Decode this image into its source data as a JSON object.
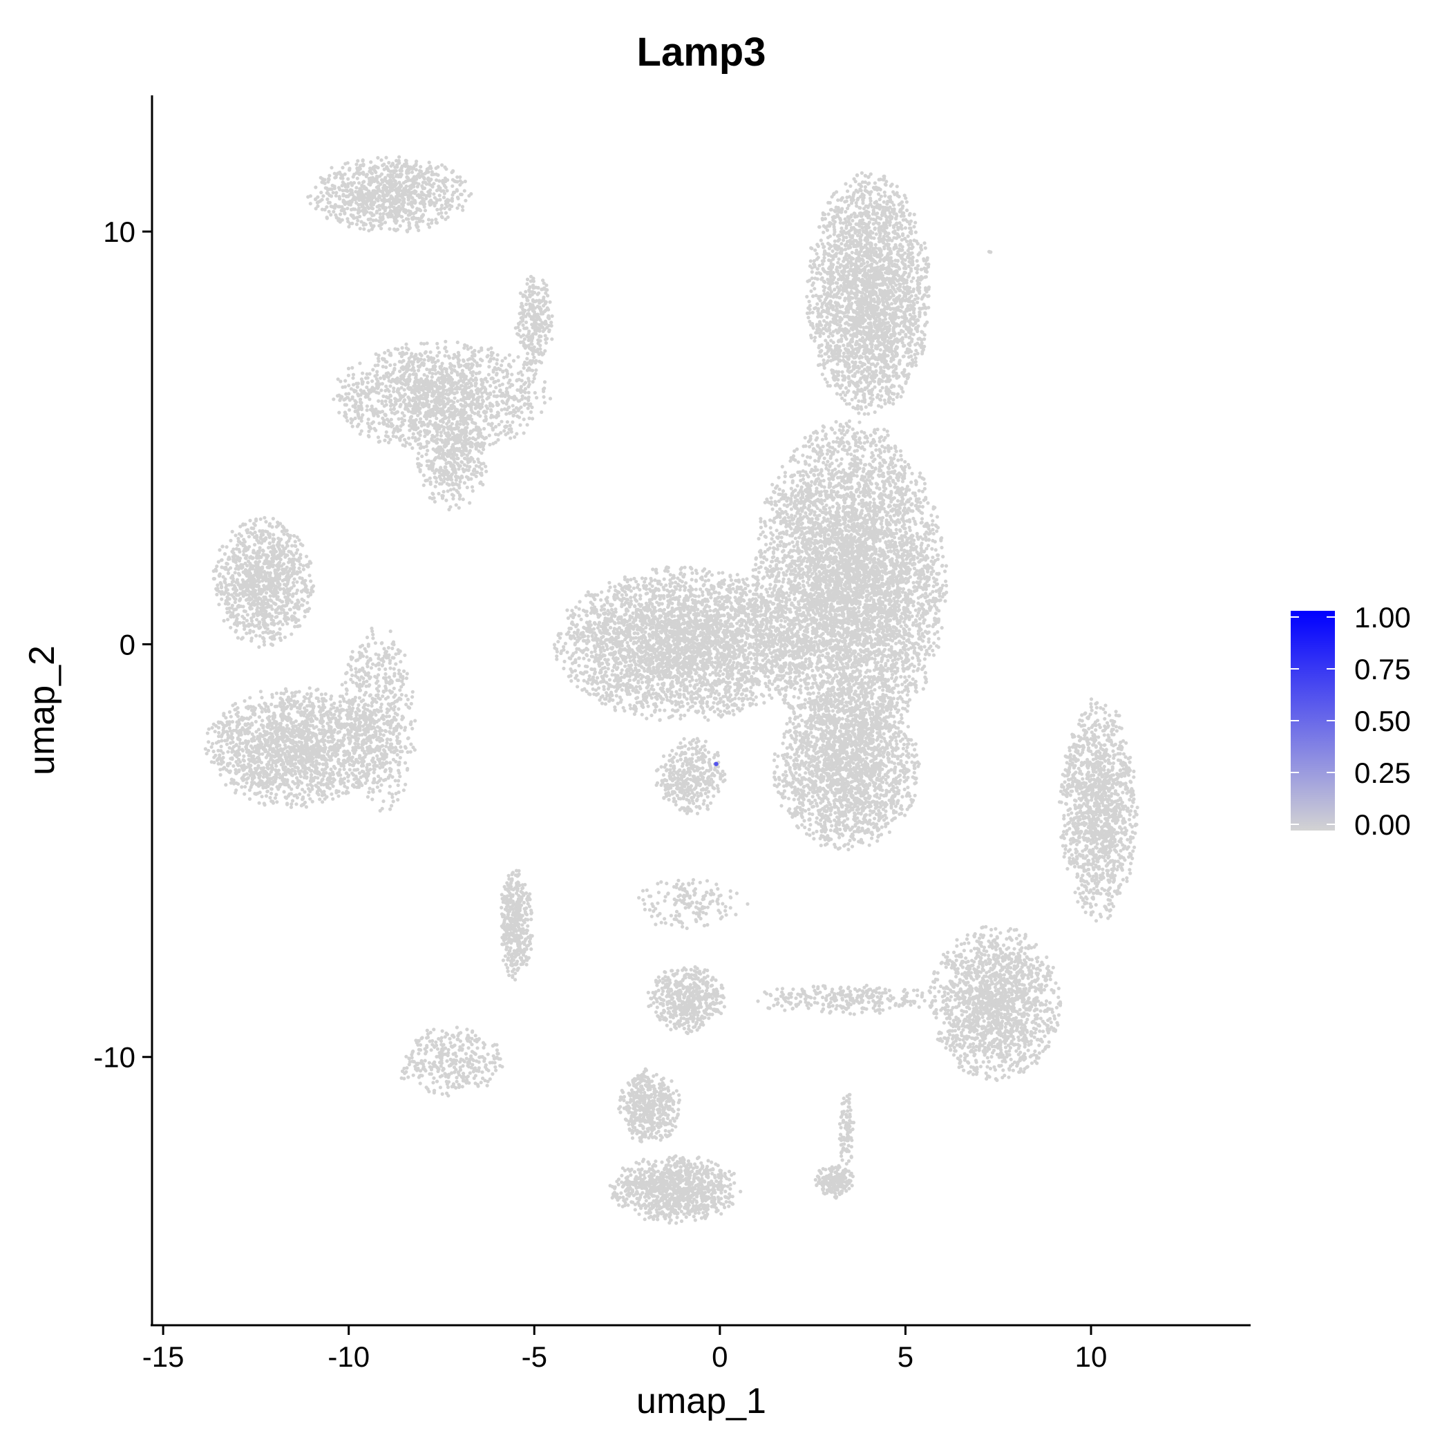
{
  "chart_data": {
    "type": "scatter",
    "title": "Lamp3",
    "xlabel": "umap_1",
    "ylabel": "umap_2",
    "xlim": [
      -15.3,
      14.3
    ],
    "ylim": [
      -16.5,
      13.3
    ],
    "x_ticks": [
      -15,
      -10,
      -5,
      0,
      5,
      10
    ],
    "y_ticks": [
      -10,
      0,
      10
    ],
    "x_tick_labels": [
      "-15",
      "-10",
      "-5",
      "0",
      "5",
      "10"
    ],
    "y_tick_labels": [
      "-10",
      "0",
      "10"
    ],
    "grid": false,
    "legend": {
      "type": "colorbar",
      "placement": "right",
      "min": 0,
      "max": 1.0,
      "ticks": [
        0.0,
        0.25,
        0.5,
        0.75,
        1.0
      ],
      "tick_labels": [
        "0.00",
        "0.25",
        "0.50",
        "0.75",
        "1.00"
      ],
      "low_color": "#d3d3d3",
      "high_color": "#0000ff"
    },
    "point_color_zero": "#d3d3d3",
    "clusters": [
      {
        "label": "top-left-crescent",
        "cx": -8.9,
        "cy": 10.9,
        "rx": 2.1,
        "ry": 0.9,
        "n": 900
      },
      {
        "label": "mid-left-wing",
        "cx": -7.5,
        "cy": 6.0,
        "rx": 2.8,
        "ry": 1.3,
        "n": 1400
      },
      {
        "label": "mid-left-wing-tail",
        "cx": -7.2,
        "cy": 4.5,
        "rx": 0.9,
        "ry": 1.2,
        "n": 400
      },
      {
        "label": "mid-left-wing-spike",
        "cx": -5.0,
        "cy": 7.8,
        "rx": 0.5,
        "ry": 1.1,
        "n": 250
      },
      {
        "label": "left-blob-upper",
        "cx": -12.3,
        "cy": 1.5,
        "rx": 1.3,
        "ry": 1.5,
        "n": 1000
      },
      {
        "label": "left-blob-lower",
        "cx": -11.5,
        "cy": -2.5,
        "rx": 2.3,
        "ry": 1.4,
        "n": 1600
      },
      {
        "label": "left-blob-right-arc",
        "cx": -9.2,
        "cy": -1.8,
        "rx": 1.0,
        "ry": 2.2,
        "n": 600
      },
      {
        "label": "main-top-column",
        "cx": 4.0,
        "cy": 8.5,
        "rx": 1.6,
        "ry": 2.8,
        "n": 2600
      },
      {
        "label": "main-body",
        "cx": 3.5,
        "cy": 1.5,
        "rx": 2.5,
        "ry": 3.8,
        "n": 5200
      },
      {
        "label": "main-left-lobe",
        "cx": -1.0,
        "cy": 0.0,
        "rx": 3.3,
        "ry": 1.8,
        "n": 3200
      },
      {
        "label": "main-lower-right",
        "cx": 3.4,
        "cy": -3.0,
        "rx": 1.9,
        "ry": 1.9,
        "n": 1900
      },
      {
        "label": "main-lower-tail",
        "cx": -0.8,
        "cy": -3.2,
        "rx": 0.9,
        "ry": 0.9,
        "n": 350
      },
      {
        "label": "right-diagonal-upper",
        "cx": 10.2,
        "cy": -4.0,
        "rx": 1.0,
        "ry": 2.6,
        "n": 1300
      },
      {
        "label": "right-diagonal-lower",
        "cx": 7.4,
        "cy": -8.7,
        "rx": 1.7,
        "ry": 1.8,
        "n": 1500
      },
      {
        "label": "small-vertical",
        "cx": -5.5,
        "cy": -6.8,
        "rx": 0.45,
        "ry": 1.3,
        "n": 400
      },
      {
        "label": "center-small-blob",
        "cx": -0.9,
        "cy": -8.6,
        "rx": 1.0,
        "ry": 0.8,
        "n": 450
      },
      {
        "label": "center-scatter-top",
        "cx": -0.8,
        "cy": -6.3,
        "rx": 1.5,
        "ry": 0.6,
        "n": 150
      },
      {
        "label": "bottom-left-scatter",
        "cx": -7.3,
        "cy": -10.1,
        "rx": 1.4,
        "ry": 0.8,
        "n": 320
      },
      {
        "label": "bottom-hook-upper",
        "cx": -1.9,
        "cy": -11.2,
        "rx": 0.8,
        "ry": 0.9,
        "n": 450
      },
      {
        "label": "bottom-hook-lower",
        "cx": -1.2,
        "cy": -13.2,
        "rx": 1.7,
        "ry": 0.8,
        "n": 900
      },
      {
        "label": "bottom-right-small",
        "cx": 3.1,
        "cy": -13.0,
        "rx": 0.5,
        "ry": 0.4,
        "n": 170
      },
      {
        "label": "bottom-right-spike",
        "cx": 3.4,
        "cy": -11.8,
        "rx": 0.2,
        "ry": 1.0,
        "n": 90
      },
      {
        "label": "bridge-streak",
        "cx": 3.3,
        "cy": -8.6,
        "rx": 2.5,
        "ry": 0.35,
        "n": 260
      },
      {
        "label": "outlier-right",
        "cx": 7.3,
        "cy": 9.5,
        "rx": 0.1,
        "ry": 0.05,
        "n": 3
      }
    ],
    "highlight_points": [
      {
        "x": -0.1,
        "y": -2.9,
        "value": 0.6
      }
    ]
  }
}
